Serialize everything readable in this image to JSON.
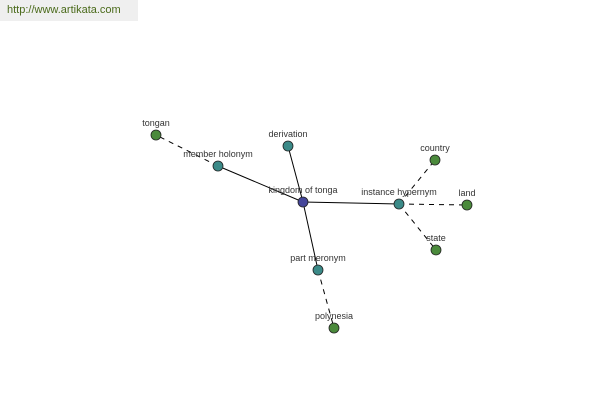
{
  "header": {
    "url": "http://www.artikata.com"
  },
  "colors": {
    "center": "#45469a",
    "relation": "#3b8a88",
    "leaf": "#4b8a3c",
    "edge": "#000000"
  },
  "nodes": [
    {
      "id": "center",
      "label": "kingdom of tonga",
      "kind": "center"
    },
    {
      "id": "member_holonym",
      "label": "member holonym",
      "kind": "relation"
    },
    {
      "id": "derivation",
      "label": "derivation",
      "kind": "relation"
    },
    {
      "id": "instance_hypernym",
      "label": "instance hypernym",
      "kind": "relation"
    },
    {
      "id": "part_meronym",
      "label": "part meronym",
      "kind": "relation"
    },
    {
      "id": "tongan",
      "label": "tongan",
      "kind": "leaf"
    },
    {
      "id": "country",
      "label": "country",
      "kind": "leaf"
    },
    {
      "id": "land",
      "label": "land",
      "kind": "leaf"
    },
    {
      "id": "state",
      "label": "state",
      "kind": "leaf"
    },
    {
      "id": "polynesia",
      "label": "polynesia",
      "kind": "leaf"
    }
  ],
  "edges": [
    {
      "from": "center",
      "to": "member_holonym",
      "style": "solid"
    },
    {
      "from": "center",
      "to": "derivation",
      "style": "solid"
    },
    {
      "from": "center",
      "to": "instance_hypernym",
      "style": "solid"
    },
    {
      "from": "center",
      "to": "part_meronym",
      "style": "solid"
    },
    {
      "from": "member_holonym",
      "to": "tongan",
      "style": "dashed"
    },
    {
      "from": "instance_hypernym",
      "to": "country",
      "style": "dashed"
    },
    {
      "from": "instance_hypernym",
      "to": "land",
      "style": "dashed"
    },
    {
      "from": "instance_hypernym",
      "to": "state",
      "style": "dashed"
    },
    {
      "from": "part_meronym",
      "to": "polynesia",
      "style": "dashed"
    }
  ]
}
